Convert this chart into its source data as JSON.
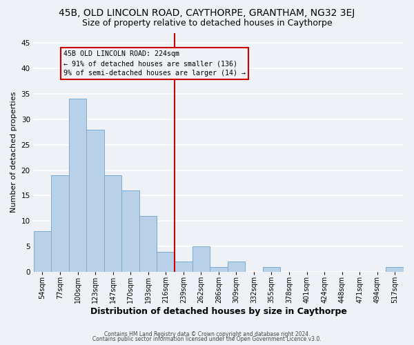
{
  "title": "45B, OLD LINCOLN ROAD, CAYTHORPE, GRANTHAM, NG32 3EJ",
  "subtitle": "Size of property relative to detached houses in Caythorpe",
  "xlabel": "Distribution of detached houses by size in Caythorpe",
  "ylabel": "Number of detached properties",
  "footer1": "Contains HM Land Registry data © Crown copyright and database right 2024.",
  "footer2": "Contains public sector information licensed under the Open Government Licence v3.0.",
  "bar_labels": [
    "54sqm",
    "77sqm",
    "100sqm",
    "123sqm",
    "147sqm",
    "170sqm",
    "193sqm",
    "216sqm",
    "239sqm",
    "262sqm",
    "286sqm",
    "309sqm",
    "332sqm",
    "355sqm",
    "378sqm",
    "401sqm",
    "424sqm",
    "448sqm",
    "471sqm",
    "494sqm",
    "517sqm"
  ],
  "bar_values": [
    8,
    19,
    34,
    28,
    19,
    16,
    11,
    4,
    2,
    5,
    1,
    2,
    0,
    1,
    0,
    0,
    0,
    0,
    0,
    0,
    1
  ],
  "bar_color": "#b8d0e8",
  "bar_edge_color": "#7aaacf",
  "vline_color": "#cc0000",
  "annotation_title": "45B OLD LINCOLN ROAD: 224sqm",
  "annotation_line1": "← 91% of detached houses are smaller (136)",
  "annotation_line2": "9% of semi-detached houses are larger (14) →",
  "ylim": [
    0,
    47
  ],
  "yticks": [
    0,
    5,
    10,
    15,
    20,
    25,
    30,
    35,
    40,
    45
  ],
  "background_color": "#eef2f7",
  "grid_color": "#ffffff",
  "title_fontsize": 10,
  "subtitle_fontsize": 9,
  "ylabel_fontsize": 8,
  "xlabel_fontsize": 9
}
